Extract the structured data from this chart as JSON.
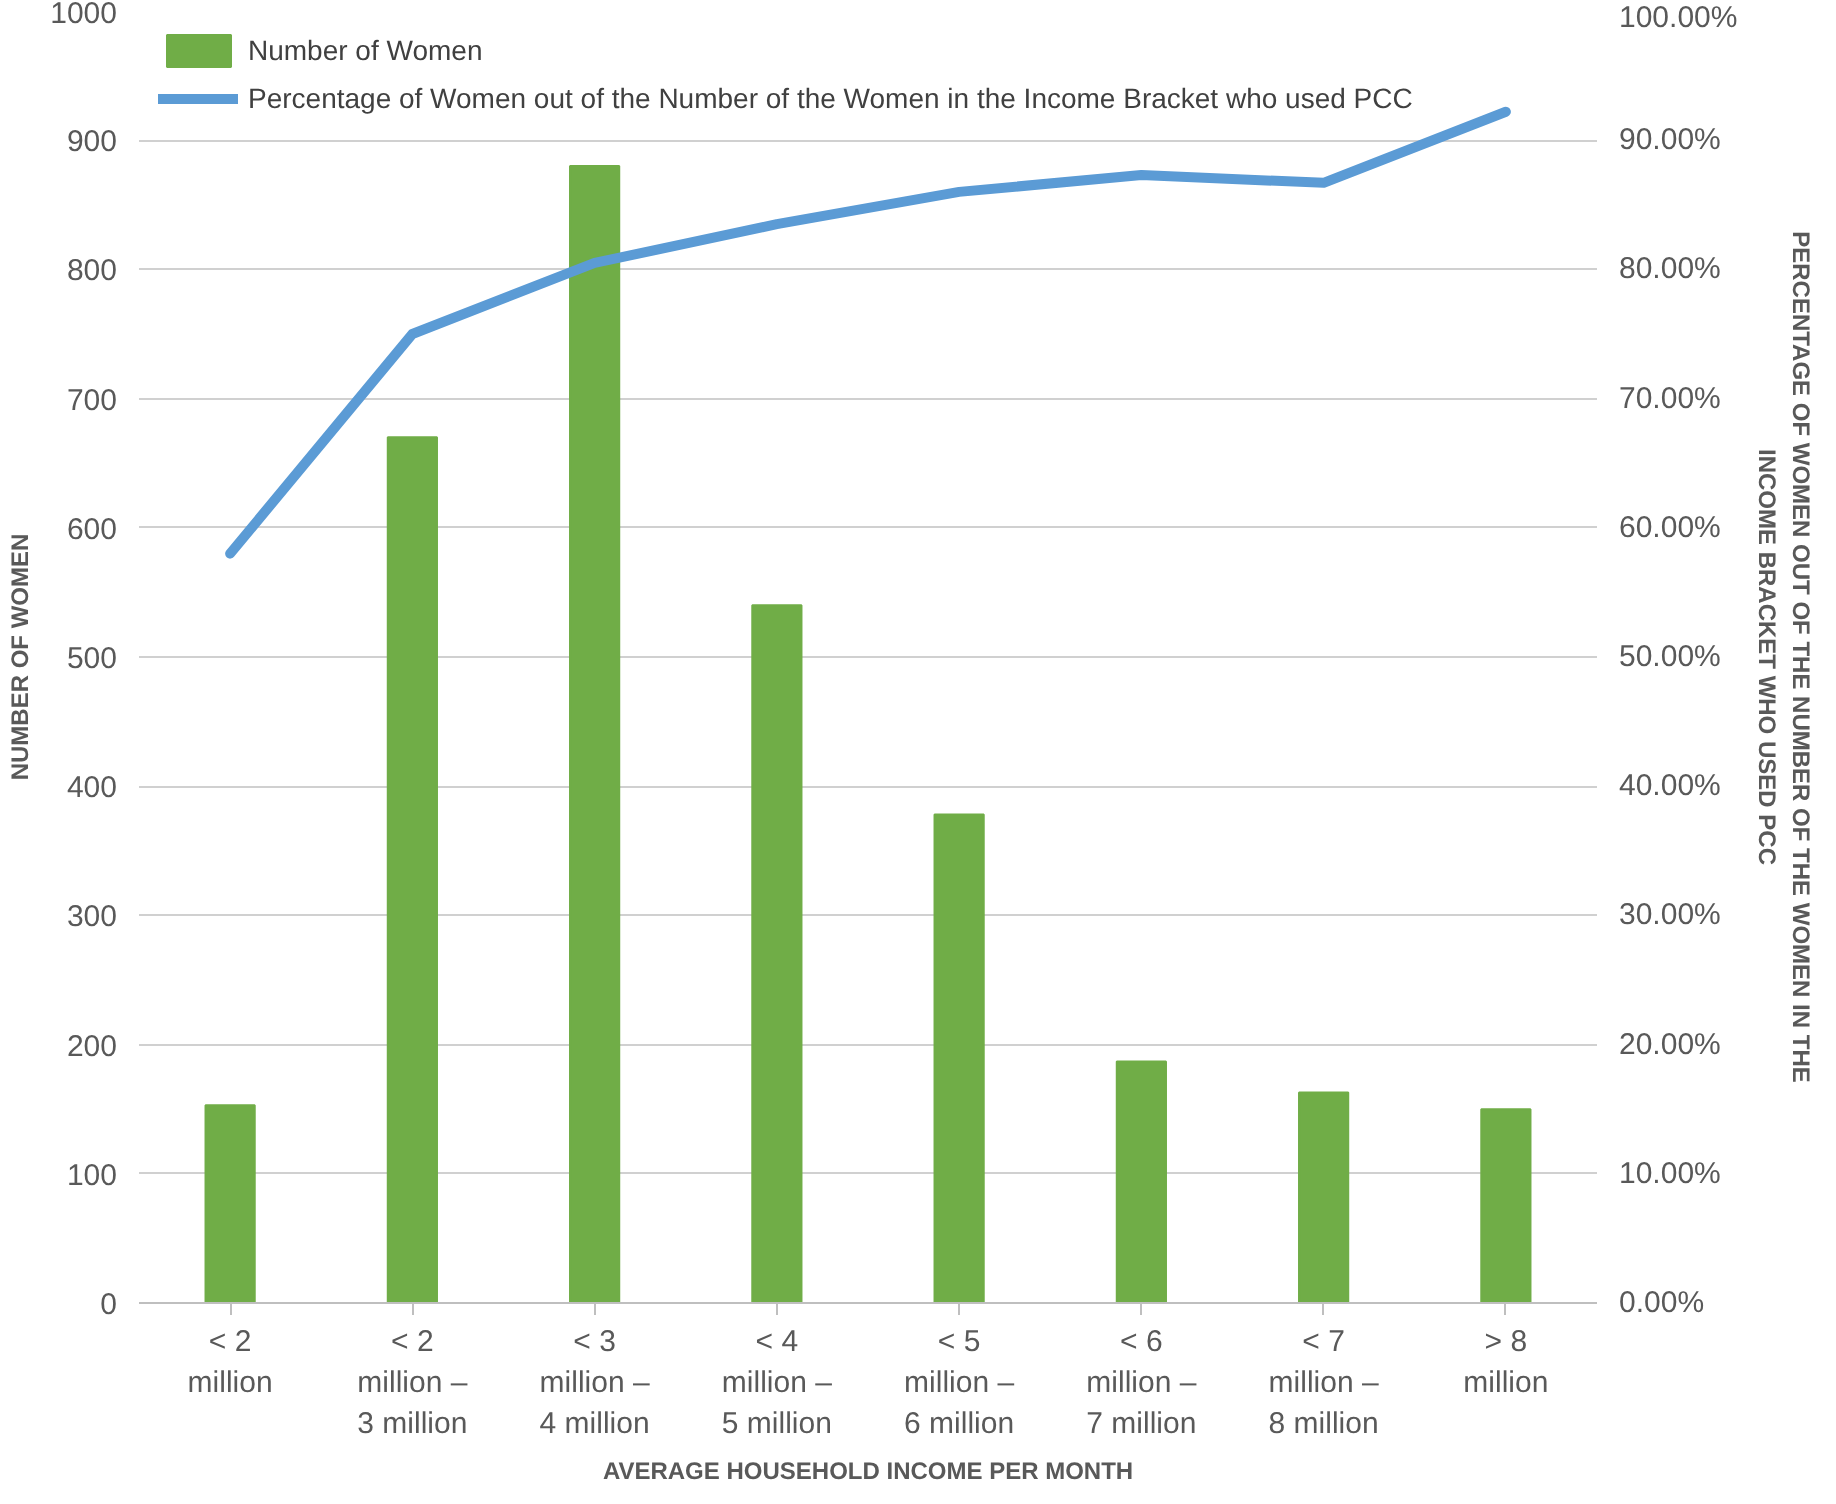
{
  "chart_data": {
    "type": "bar",
    "xlabel": "AVERAGE HOUSEHOLD INCOME PER MONTH",
    "ylabel": "NUMBER OF WOMEN",
    "y2label": "PERCENTAGE OF WOMEN OUT OF THE NUMBER OF THE WOMEN IN THE INCOME BRACKET WHO USED PCC",
    "categories": [
      "< 2 million",
      "< 2 million – 3 million",
      "< 3 million – 4 million",
      "< 4 million – 5 million",
      "< 5 million – 6 million",
      "< 6 million – 7 million",
      "< 7 million – 8 million",
      "> 8 million"
    ],
    "series": [
      {
        "name": "Number of Women",
        "color": "#70ad47",
        "values": [
          153,
          670,
          880,
          540,
          378,
          187,
          163,
          150
        ]
      },
      {
        "name": "Percentage of Women out of the Number of the Women in the Income Bracket who used PCC",
        "type": "line",
        "axis": "y2",
        "color": "#5b9bd5",
        "values": [
          58.0,
          75.0,
          80.5,
          83.5,
          86.0,
          87.3,
          86.7,
          92.2
        ]
      }
    ],
    "ylim": [
      0,
      1000
    ],
    "yticks": [
      0,
      100,
      200,
      300,
      400,
      500,
      600,
      700,
      800,
      900,
      1000
    ],
    "y2lim": [
      0,
      100
    ],
    "y2ticks": [
      {
        "value": 0,
        "label": "0.00%"
      },
      {
        "value": 10,
        "label": "10.00%"
      },
      {
        "value": 20,
        "label": "20.00%"
      },
      {
        "value": 30,
        "label": "30.00%"
      },
      {
        "value": 40,
        "label": "40.00%"
      },
      {
        "value": 50,
        "label": "50.00%"
      },
      {
        "value": 60,
        "label": "60.00%"
      },
      {
        "value": 70,
        "label": "70.00%"
      },
      {
        "value": 80,
        "label": "80.00%"
      },
      {
        "value": 90,
        "label": "90.00%"
      },
      {
        "value": 100,
        "label": "100.00%"
      }
    ],
    "grid": "y",
    "legend": "top left",
    "marker": "none",
    "line_style": "solid"
  }
}
